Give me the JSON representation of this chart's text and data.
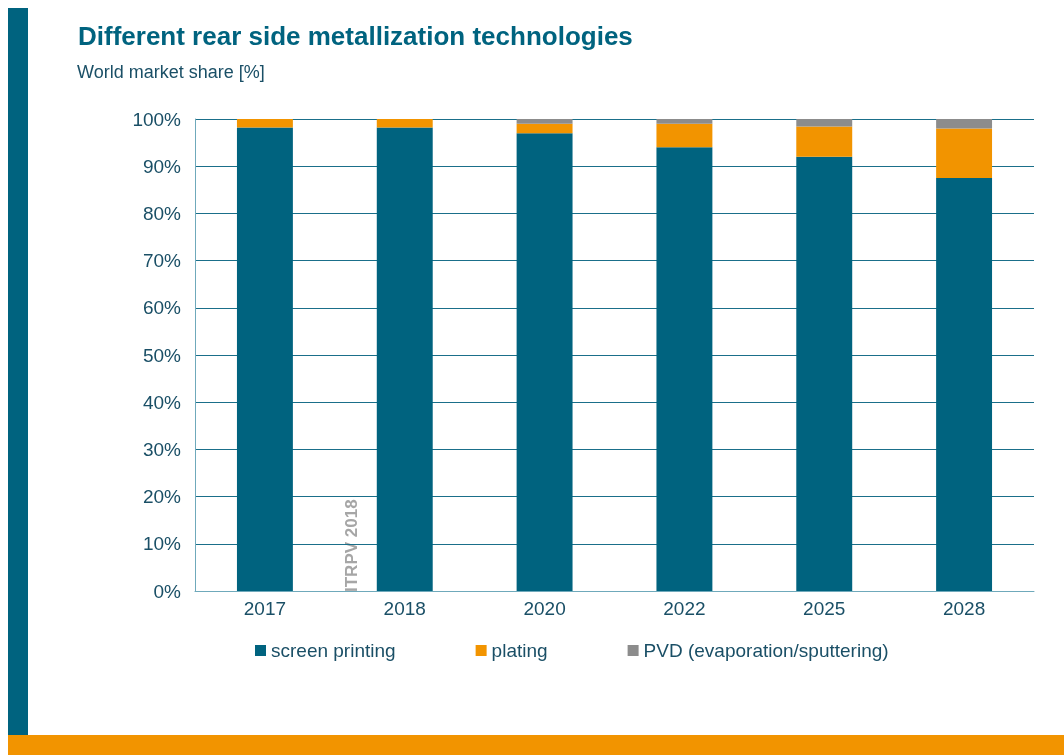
{
  "chart_data": {
    "type": "bar",
    "title": "Different rear side metallization technologies",
    "subtitle": "World market share [%]",
    "categories": [
      "2017",
      "2018",
      "2020",
      "2022",
      "2025",
      "2028"
    ],
    "series": [
      {
        "name": "screen printing",
        "color": "#00637f",
        "values": [
          98.2,
          98.2,
          97,
          94,
          92,
          87.5
        ]
      },
      {
        "name": "plating",
        "color": "#f29400",
        "values": [
          1.8,
          1.8,
          2,
          5,
          6.4,
          10.5
        ]
      },
      {
        "name": "PVD (evaporation/sputtering)",
        "color": "#8c8c8c",
        "values": [
          0,
          0,
          1,
          1,
          1.6,
          2
        ]
      }
    ],
    "stacked": true,
    "ylim": [
      0,
      100
    ],
    "yticks": [
      {
        "value": 0,
        "label": "0%"
      },
      {
        "value": 10,
        "label": "10%"
      },
      {
        "value": 20,
        "label": "20%"
      },
      {
        "value": 30,
        "label": "30%"
      },
      {
        "value": 40,
        "label": "40%"
      },
      {
        "value": 50,
        "label": "50%"
      },
      {
        "value": 60,
        "label": "60%"
      },
      {
        "value": 70,
        "label": "70%"
      },
      {
        "value": 80,
        "label": "80%"
      },
      {
        "value": 90,
        "label": "90%"
      },
      {
        "value": 100,
        "label": "100%"
      }
    ],
    "grid": "y",
    "legend": "bottom",
    "annotations": [
      "ITRPV 2018"
    ]
  }
}
